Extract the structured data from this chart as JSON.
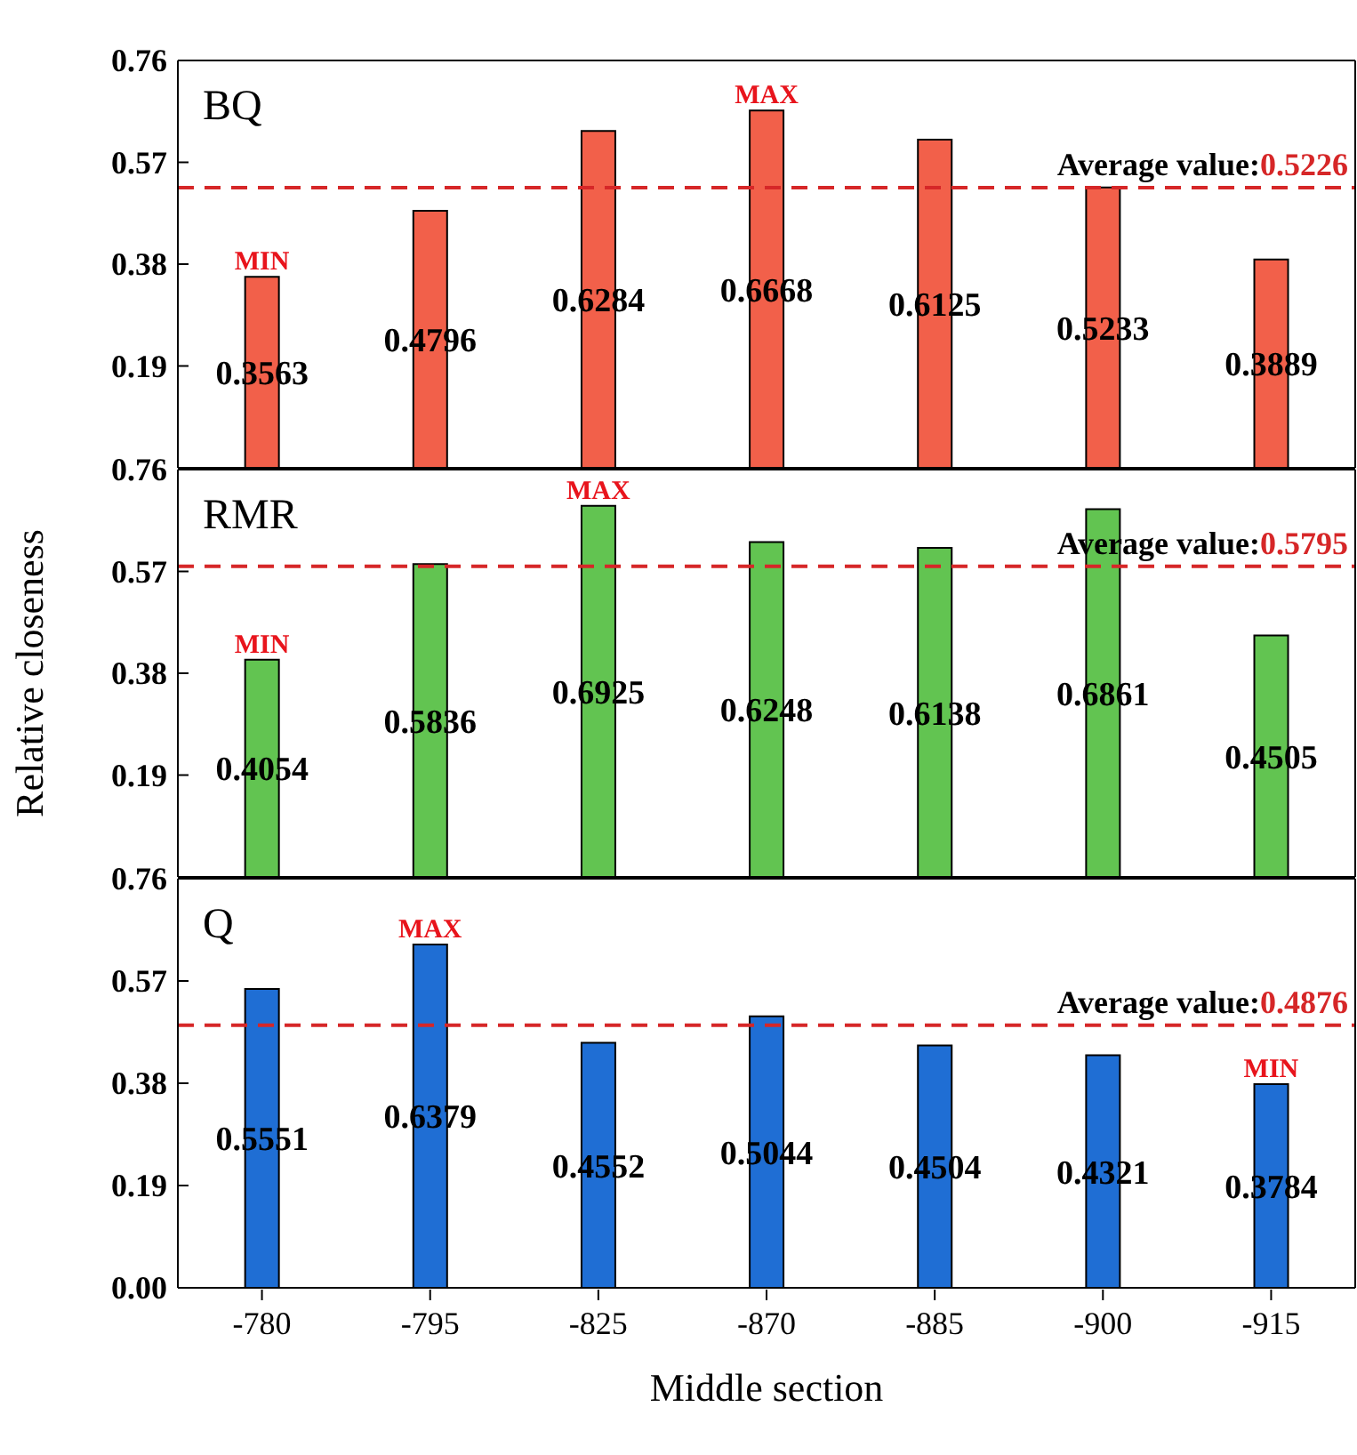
{
  "chart_data": [
    {
      "type": "bar",
      "title": "BQ",
      "categories": [
        "-780",
        "-795",
        "-825",
        "-870",
        "-885",
        "-900",
        "-915"
      ],
      "values": [
        0.3563,
        0.4796,
        0.6284,
        0.6668,
        0.6125,
        0.5233,
        0.3889
      ],
      "color": "#f2604a",
      "data_labels": true,
      "ylim": [
        0,
        0.76
      ],
      "yticks": [
        0.19,
        0.38,
        0.57,
        0.76
      ],
      "tick_labels": "y",
      "ref_lines": [
        {
          "axis": "y",
          "value": 0.5226,
          "label": "Average value:0.5226",
          "color": "#d62728",
          "line_style": "dashed"
        }
      ],
      "annotations": [
        {
          "text": "MIN",
          "x": "-780",
          "y": 0.3563
        },
        {
          "text": "MAX",
          "x": "-870",
          "y": 0.6668
        }
      ]
    },
    {
      "type": "bar",
      "title": "RMR",
      "ylabel": "Relative closeness",
      "categories": [
        "-780",
        "-795",
        "-825",
        "-870",
        "-885",
        "-900",
        "-915"
      ],
      "values": [
        0.4054,
        0.5836,
        0.6925,
        0.6248,
        0.6138,
        0.6861,
        0.4505
      ],
      "color": "#62c451",
      "data_labels": true,
      "ylim": [
        0,
        0.76
      ],
      "yticks": [
        0.19,
        0.38,
        0.57,
        0.76
      ],
      "tick_labels": "y",
      "ref_lines": [
        {
          "axis": "y",
          "value": 0.5795,
          "label": "Average value:0.5795",
          "color": "#d62728",
          "line_style": "dashed"
        }
      ],
      "annotations": [
        {
          "text": "MIN",
          "x": "-780",
          "y": 0.4054
        },
        {
          "text": "MAX",
          "x": "-825",
          "y": 0.6925
        }
      ]
    },
    {
      "type": "bar",
      "title": "Q",
      "xlabel": "Middle section",
      "categories": [
        "-780",
        "-795",
        "-825",
        "-870",
        "-885",
        "-900",
        "-915"
      ],
      "values": [
        0.5551,
        0.6379,
        0.4552,
        0.5044,
        0.4504,
        0.4321,
        0.3784
      ],
      "color": "#1f6ed4",
      "data_labels": true,
      "ylim": [
        0,
        0.76
      ],
      "yticks": [
        {
          "value": 0,
          "label": "0.00"
        },
        0.19,
        0.38,
        0.57,
        0.76
      ],
      "ref_lines": [
        {
          "axis": "y",
          "value": 0.4876,
          "label": "Average value:0.4876",
          "color": "#d62728",
          "line_style": "dashed"
        }
      ],
      "annotations": [
        {
          "text": "MAX",
          "x": "-795",
          "y": 0.6379
        },
        {
          "text": "MIN",
          "x": "-915",
          "y": 0.3784
        }
      ]
    }
  ]
}
